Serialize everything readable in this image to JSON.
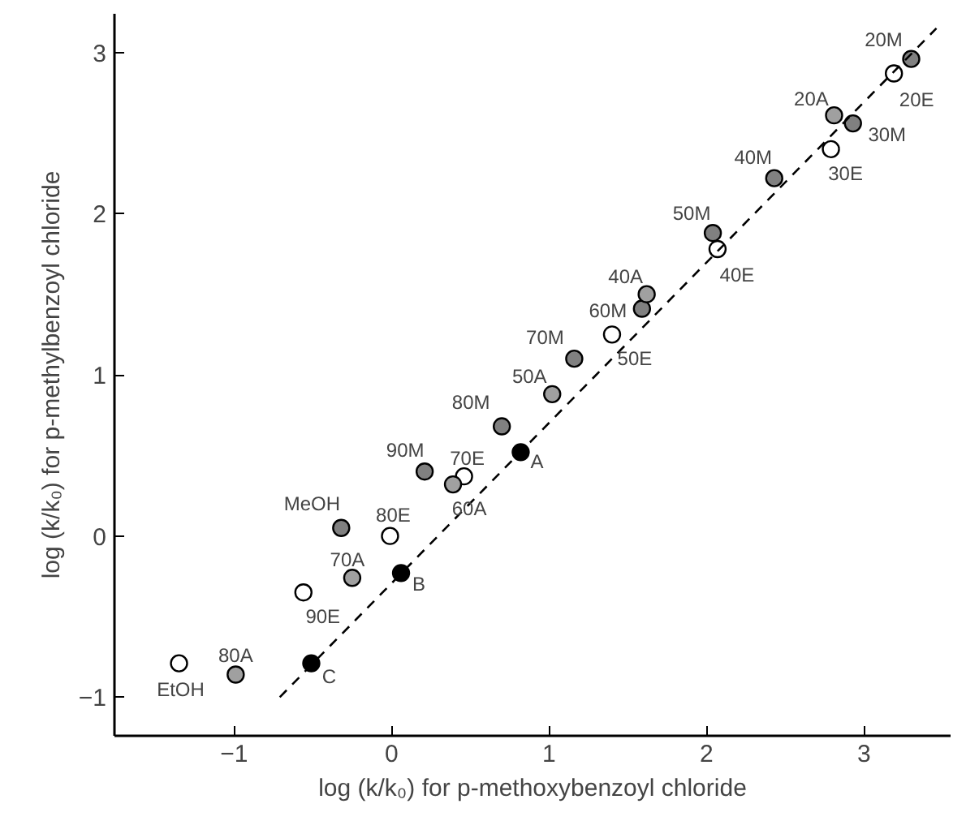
{
  "chart_data": {
    "type": "scatter",
    "xlabel": "log (k/k₀) for p-methoxybenzoyl chloride",
    "ylabel": "log (k/k₀) for p-methylbenzoyl chloride",
    "xlim": [
      -1.76,
      3.55
    ],
    "ylim": [
      -1.24,
      3.24
    ],
    "xticks": [
      -1,
      0,
      1,
      2,
      3
    ],
    "yticks": [
      -1,
      0,
      1,
      2,
      3
    ],
    "grid": false,
    "marker": "circle",
    "series": [
      {
        "color": "#ffffff",
        "x": [
          3.19,
          2.79,
          2.07,
          1.4,
          0.46,
          -0.01,
          -0.56,
          -1.35
        ],
        "values": [
          2.87,
          2.4,
          1.78,
          1.25,
          0.37,
          0.0,
          -0.35,
          -0.79
        ]
      },
      {
        "color": "#808080",
        "x": [
          3.3,
          2.93,
          2.43,
          2.04,
          1.59,
          1.16,
          0.7,
          0.21,
          -0.32
        ],
        "values": [
          2.96,
          2.56,
          2.22,
          1.88,
          1.41,
          1.1,
          0.68,
          0.4,
          0.05
        ]
      },
      {
        "color": "#a0a0a0",
        "x": [
          2.81,
          1.62,
          1.02,
          0.39,
          -0.25,
          -0.99
        ],
        "values": [
          2.61,
          1.5,
          0.88,
          0.32,
          -0.26,
          -0.86
        ]
      },
      {
        "color": "#000000",
        "x": [
          0.82,
          0.06,
          -0.51
        ],
        "values": [
          0.52,
          -0.23,
          -0.79
        ]
      },
      {
        "type": "line",
        "line_style": "dashed",
        "marker": "none",
        "color": "#000000",
        "x": [
          -0.71,
          3.46
        ],
        "values": [
          -1.0,
          3.15
        ]
      }
    ],
    "annotations": [
      {
        "text": "20M",
        "x": 3.3,
        "y": 2.96
      },
      {
        "text": "20E",
        "x": 3.19,
        "y": 2.87
      },
      {
        "text": "20A",
        "x": 2.81,
        "y": 2.61
      },
      {
        "text": "30M",
        "x": 2.93,
        "y": 2.56
      },
      {
        "text": "30E",
        "x": 2.79,
        "y": 2.4
      },
      {
        "text": "40M",
        "x": 2.43,
        "y": 2.22
      },
      {
        "text": "50M",
        "x": 2.04,
        "y": 1.88
      },
      {
        "text": "40E",
        "x": 2.07,
        "y": 1.78
      },
      {
        "text": "40A",
        "x": 1.62,
        "y": 1.5
      },
      {
        "text": "60M",
        "x": 1.59,
        "y": 1.41
      },
      {
        "text": "50E",
        "x": 1.4,
        "y": 1.25
      },
      {
        "text": "70M",
        "x": 1.16,
        "y": 1.1
      },
      {
        "text": "50A",
        "x": 1.02,
        "y": 0.88
      },
      {
        "text": "80M",
        "x": 0.7,
        "y": 0.68
      },
      {
        "text": "A",
        "x": 0.82,
        "y": 0.52
      },
      {
        "text": "90M",
        "x": 0.21,
        "y": 0.4
      },
      {
        "text": "70E",
        "x": 0.46,
        "y": 0.37
      },
      {
        "text": "60A",
        "x": 0.39,
        "y": 0.32
      },
      {
        "text": "MeOH",
        "x": -0.32,
        "y": 0.05
      },
      {
        "text": "80E",
        "x": -0.01,
        "y": 0.0
      },
      {
        "text": "70A",
        "x": -0.25,
        "y": -0.26
      },
      {
        "text": "B",
        "x": 0.06,
        "y": -0.23
      },
      {
        "text": "90E",
        "x": -0.56,
        "y": -0.35
      },
      {
        "text": "C",
        "x": -0.51,
        "y": -0.79
      },
      {
        "text": "80A",
        "x": -0.99,
        "y": -0.86
      },
      {
        "text": "EtOH",
        "x": -1.35,
        "y": -0.79
      }
    ]
  }
}
